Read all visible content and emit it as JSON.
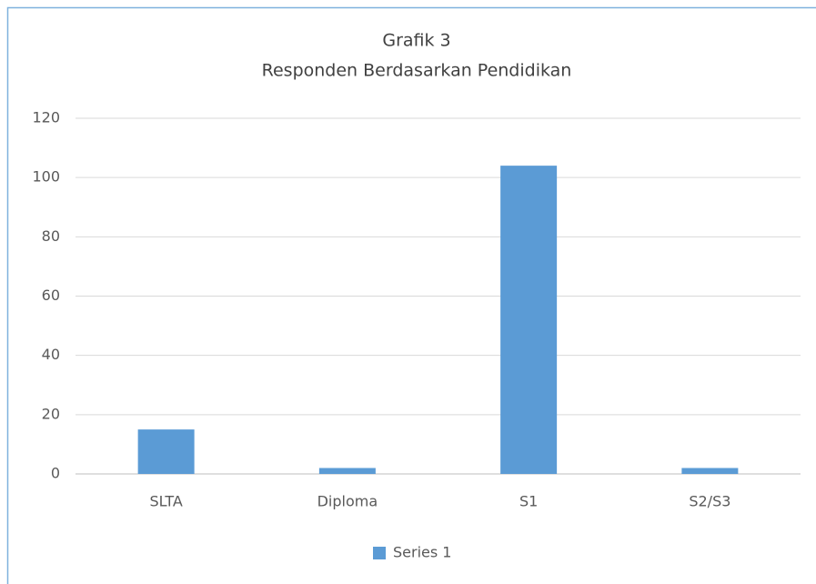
{
  "chart_data": {
    "type": "bar",
    "title": "Grafik 3",
    "subtitle": "Responden Berdasarkan Pendidikan",
    "categories": [
      "SLTA",
      "Diploma",
      "S1",
      "S2/S3"
    ],
    "series": [
      {
        "name": "Series 1",
        "color": "#5b9bd5",
        "values": [
          15,
          2,
          104,
          2
        ]
      }
    ],
    "ylim": [
      0,
      120
    ],
    "yticks": [
      0,
      20,
      40,
      60,
      80,
      100,
      120
    ],
    "grid": true,
    "legend": "bottom"
  }
}
